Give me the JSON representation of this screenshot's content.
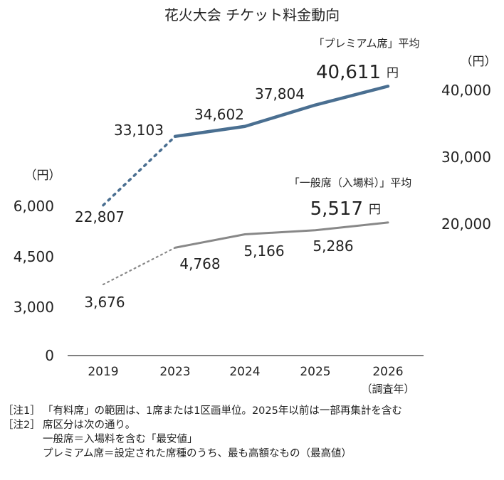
{
  "chart_data": {
    "type": "line",
    "title": "花火大会 チケット料金動向",
    "categories": [
      "2019",
      "2023",
      "2024",
      "2025",
      "2026"
    ],
    "x_unit_note": "（調査年）",
    "series": [
      {
        "name": "「プレミアム席」平均",
        "axis": "right",
        "color": "#4a6f91",
        "values": [
          22807,
          33103,
          34602,
          37804,
          40611
        ],
        "labels": [
          "22,807",
          "33,103",
          "34,602",
          "37,804",
          "40,611"
        ],
        "highlight_unit": "円"
      },
      {
        "name": "「一般席（入場料）」平均",
        "axis": "left",
        "color": "#888888",
        "values": [
          3676,
          4768,
          5166,
          5286,
          5517
        ],
        "labels": [
          "3,676",
          "4,768",
          "5,166",
          "5,286",
          "5,517"
        ],
        "highlight_unit": "円"
      }
    ],
    "left_axis": {
      "unit": "（円）",
      "ticks": [
        "0",
        "3,000",
        "4,500",
        "6,000"
      ]
    },
    "right_axis": {
      "unit": "（円）",
      "ticks": [
        "20,000",
        "30,000",
        "40,000"
      ]
    },
    "dotted_segment": "2019-2023",
    "grid": false,
    "legend": "inline-labels"
  },
  "notes": [
    {
      "tag": "［注1］",
      "text": "「有料席」の範囲は、1席または1区画単位。2025年以前は一部再集計を含む"
    },
    {
      "tag": "［注2］",
      "text": "席区分は次の通り。"
    },
    {
      "tag": "",
      "text": "一般席＝入場料を含む「最安値」"
    },
    {
      "tag": "",
      "text": "プレミアム席＝設定された席種のうち、最も高額なもの（最高値）"
    }
  ]
}
